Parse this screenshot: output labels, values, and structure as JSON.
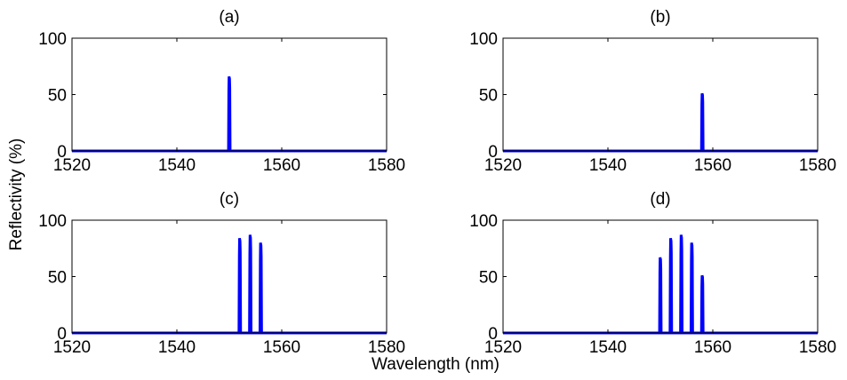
{
  "figure": {
    "xlabel": "Wavelength (nm)",
    "ylabel": "Reflectivity (%)"
  },
  "colors": {
    "series": "#0000ff",
    "axes": "#000000",
    "background": "#ffffff"
  },
  "chart_data": [
    {
      "type": "line",
      "title": "(a)",
      "xlim": [
        1520,
        1580
      ],
      "ylim": [
        0,
        100
      ],
      "xticks": [
        1520,
        1540,
        1560,
        1580
      ],
      "yticks": [
        0,
        50,
        100
      ],
      "grid": false,
      "series": [
        {
          "color": "#0000ff",
          "peaks": [
            {
              "x": 1550,
              "y": 66
            }
          ]
        }
      ]
    },
    {
      "type": "line",
      "title": "(b)",
      "xlim": [
        1520,
        1580
      ],
      "ylim": [
        0,
        100
      ],
      "xticks": [
        1520,
        1540,
        1560,
        1580
      ],
      "yticks": [
        0,
        50,
        100
      ],
      "grid": false,
      "series": [
        {
          "color": "#0000ff",
          "peaks": [
            {
              "x": 1558,
              "y": 51
            }
          ]
        }
      ]
    },
    {
      "type": "line",
      "title": "(c)",
      "xlim": [
        1520,
        1580
      ],
      "ylim": [
        0,
        100
      ],
      "xticks": [
        1520,
        1540,
        1560,
        1580
      ],
      "yticks": [
        0,
        50,
        100
      ],
      "grid": false,
      "series": [
        {
          "color": "#0000ff",
          "peaks": [
            {
              "x": 1552,
              "y": 84
            },
            {
              "x": 1554,
              "y": 87
            },
            {
              "x": 1556,
              "y": 80
            }
          ]
        }
      ]
    },
    {
      "type": "line",
      "title": "(d)",
      "xlim": [
        1520,
        1580
      ],
      "ylim": [
        0,
        100
      ],
      "xticks": [
        1520,
        1540,
        1560,
        1580
      ],
      "yticks": [
        0,
        50,
        100
      ],
      "grid": false,
      "series": [
        {
          "color": "#0000ff",
          "peaks": [
            {
              "x": 1550,
              "y": 67
            },
            {
              "x": 1552,
              "y": 84
            },
            {
              "x": 1554,
              "y": 87
            },
            {
              "x": 1556,
              "y": 80
            },
            {
              "x": 1558,
              "y": 51
            }
          ]
        }
      ]
    }
  ]
}
